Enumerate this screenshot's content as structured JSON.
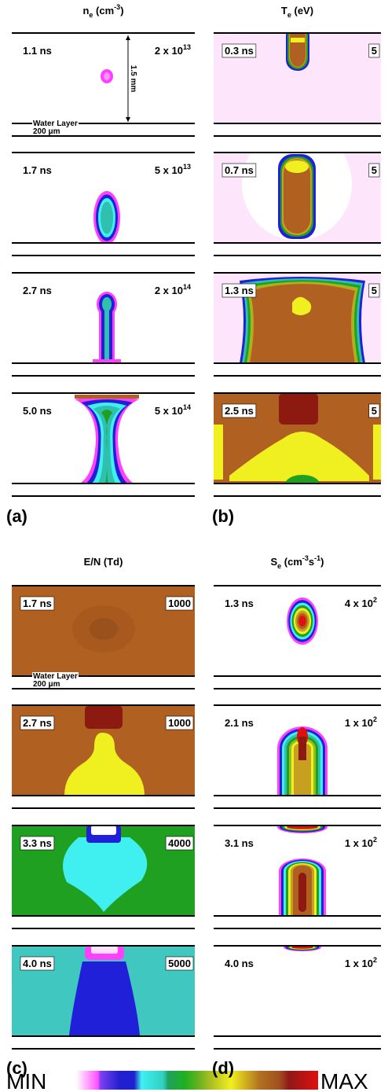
{
  "panels": [
    {
      "label": "(a)",
      "header": [
        {
          "text": "n"
        },
        {
          "sub": "e"
        },
        {
          "text": " (cm"
        },
        {
          "sup": "-3"
        },
        {
          "text": ")"
        }
      ],
      "frames": [
        {
          "time": "1.1 ns",
          "scale": "2 x 10",
          "exponent": "13"
        },
        {
          "time": "1.7 ns",
          "scale": "5 x 10",
          "exponent": "13"
        },
        {
          "time": "2.7 ns",
          "scale": "2 x 10",
          "exponent": "14"
        },
        {
          "time": "5.0 ns",
          "scale": "5 x 10",
          "exponent": "14"
        }
      ],
      "annotations": {
        "distance": "1.5 mm",
        "water_layer": "Water Layer",
        "thickness": "200 μm"
      }
    },
    {
      "label": "(b)",
      "header": [
        {
          "text": "T"
        },
        {
          "sub": "e"
        },
        {
          "text": " (eV)"
        }
      ],
      "frames": [
        {
          "time": "0.3 ns",
          "scale": "5"
        },
        {
          "time": "0.7 ns",
          "scale": "5"
        },
        {
          "time": "1.3 ns",
          "scale": "5"
        },
        {
          "time": "2.5 ns",
          "scale": "5"
        }
      ]
    },
    {
      "label": "(c)",
      "header": [
        {
          "text": "E/N (Td)"
        }
      ],
      "frames": [
        {
          "time": "1.7 ns",
          "scale": "1000"
        },
        {
          "time": "2.7 ns",
          "scale": "1000"
        },
        {
          "time": "3.3 ns",
          "scale": "4000"
        },
        {
          "time": "4.0 ns",
          "scale": "5000"
        }
      ],
      "annotations": {
        "water_layer": "Water Layer",
        "thickness": "200 μm"
      }
    },
    {
      "label": "(d)",
      "header": [
        {
          "text": "S"
        },
        {
          "sub": "e"
        },
        {
          "text": " (cm"
        },
        {
          "sup": "-3"
        },
        {
          "text": "s"
        },
        {
          "sup": "-1"
        },
        {
          "text": ")"
        }
      ],
      "frames": [
        {
          "time": "1.3 ns",
          "scale": "4 x 10",
          "exponent": "2"
        },
        {
          "time": "2.1 ns",
          "scale": "1 x 10",
          "exponent": "2"
        },
        {
          "time": "3.1 ns",
          "scale": "1 x 10",
          "exponent": "2"
        },
        {
          "time": "4.0 ns",
          "scale": "1 x 10",
          "exponent": "2"
        }
      ]
    }
  ],
  "colorbar": {
    "min": "MIN",
    "max": "MAX"
  }
}
